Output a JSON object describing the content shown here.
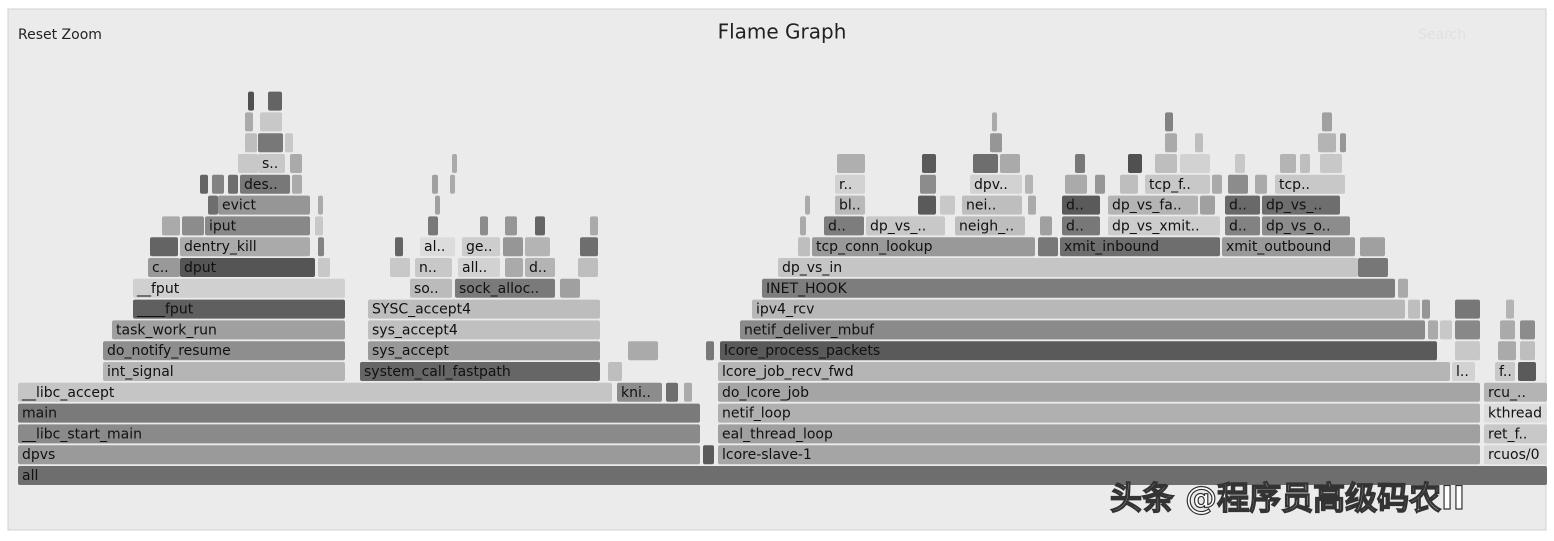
{
  "header": {
    "reset": "Reset Zoom",
    "title": "Flame Graph",
    "search": "Search"
  },
  "frames": [
    "all",
    "dpvs",
    "lcore-slave-1",
    "rcuos/0",
    "__libc_start_main",
    "eal_thread_loop",
    "ret_f..",
    "main",
    "netif_loop",
    "kthread",
    "__libc_accept",
    "kni..",
    "do_lcore_job",
    "rcu_..",
    "int_signal",
    "system_call_fastpath",
    "lcore_job_recv_fwd",
    "l..",
    "f..",
    "do_notify_resume",
    "sys_accept",
    "lcore_process_packets",
    "task_work_run",
    "sys_accept4",
    "netif_deliver_mbuf",
    "____fput",
    "SYSC_accept4",
    "ipv4_rcv",
    "__fput",
    "so..",
    "sock_alloc..",
    "INET_HOOK",
    "c..",
    "dput",
    "n..",
    "all..",
    "d..",
    "dp_vs_in",
    "dentry_kill",
    "al..",
    "ge..",
    "tcp_conn_lookup",
    "xmit_inbound",
    "xmit_outbound",
    "iput",
    "d..",
    "dp_vs_..",
    "neigh_..",
    "d..",
    "dp_vs_xmit..",
    "d..",
    "dp_vs_o..",
    "evict",
    "bl..",
    "nei..",
    "d..",
    "dp_vs_fa..",
    "d..",
    "dp_vs_..",
    "des..",
    "r..",
    "dpv..",
    "tcp_f..",
    "tcp..",
    "s.."
  ],
  "watermark": "头条 @程序员高级码农II"
}
